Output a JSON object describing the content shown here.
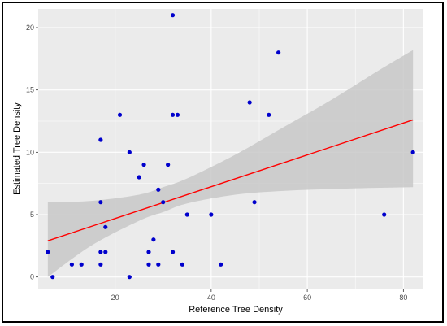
{
  "chart_data": {
    "type": "scatter",
    "xlabel": "Reference Tree Density",
    "ylabel": "Estimated Tree Density",
    "xlim": [
      4,
      84
    ],
    "ylim": [
      -1,
      21.5
    ],
    "x_ticks": [
      20,
      40,
      60,
      80
    ],
    "y_ticks": [
      0,
      5,
      10,
      15,
      20
    ],
    "grid": true,
    "panel_background": "#ebebeb",
    "point_color": "#0000cc",
    "line_color": "#ff0000",
    "band_color": "#c8c8c8",
    "points": [
      {
        "x": 6,
        "y": 2
      },
      {
        "x": 7,
        "y": 0
      },
      {
        "x": 11,
        "y": 1
      },
      {
        "x": 13,
        "y": 1
      },
      {
        "x": 17,
        "y": 1
      },
      {
        "x": 17,
        "y": 2
      },
      {
        "x": 17,
        "y": 6
      },
      {
        "x": 17,
        "y": 11
      },
      {
        "x": 18,
        "y": 2
      },
      {
        "x": 18,
        "y": 4
      },
      {
        "x": 21,
        "y": 13
      },
      {
        "x": 23,
        "y": 0
      },
      {
        "x": 23,
        "y": 10
      },
      {
        "x": 25,
        "y": 8
      },
      {
        "x": 26,
        "y": 9
      },
      {
        "x": 27,
        "y": 1
      },
      {
        "x": 27,
        "y": 2
      },
      {
        "x": 28,
        "y": 3
      },
      {
        "x": 29,
        "y": 1
      },
      {
        "x": 29,
        "y": 7
      },
      {
        "x": 30,
        "y": 6
      },
      {
        "x": 31,
        "y": 9
      },
      {
        "x": 32,
        "y": 2
      },
      {
        "x": 32,
        "y": 13
      },
      {
        "x": 32,
        "y": 21
      },
      {
        "x": 33,
        "y": 13
      },
      {
        "x": 34,
        "y": 1
      },
      {
        "x": 35,
        "y": 5
      },
      {
        "x": 40,
        "y": 5
      },
      {
        "x": 42,
        "y": 1
      },
      {
        "x": 48,
        "y": 14
      },
      {
        "x": 49,
        "y": 6
      },
      {
        "x": 52,
        "y": 13
      },
      {
        "x": 54,
        "y": 18
      },
      {
        "x": 76,
        "y": 5
      },
      {
        "x": 82,
        "y": 10
      }
    ],
    "fit_line": [
      {
        "x": 6,
        "y": 2.9
      },
      {
        "x": 82,
        "y": 12.6
      }
    ],
    "confidence_band": {
      "x": [
        6,
        15,
        25,
        30,
        35,
        45,
        55,
        65,
        75,
        82
      ],
      "lower": [
        0,
        2.5,
        4.5,
        5.2,
        5.9,
        6.6,
        6.9,
        7.05,
        7.15,
        7.2
      ],
      "upper": [
        6.0,
        6.1,
        6.6,
        7.2,
        7.9,
        9.8,
        12.0,
        14.2,
        16.6,
        18.2
      ]
    }
  }
}
